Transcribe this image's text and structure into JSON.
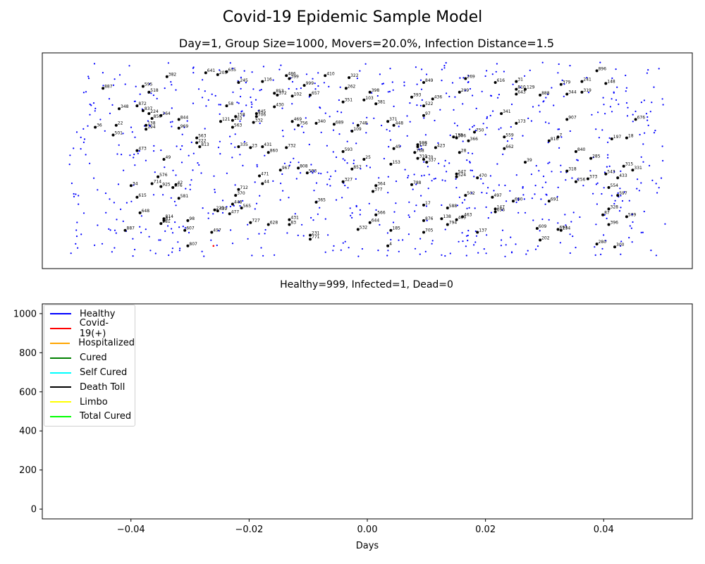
{
  "figure": {
    "title": "Covid-19 Epidemic Sample Model",
    "status_line": "Healthy=999, Infected=1, Dead=0"
  },
  "chart_data": [
    {
      "type": "scatter",
      "title": "Day=1, Group Size=1000, Movers=20.0%, Infection Distance=1.5",
      "axes_visible": false,
      "xlim": [
        0,
        100
      ],
      "ylim": [
        0,
        100
      ],
      "population": 1000,
      "healthy_color": "#0000ff",
      "infected_color": "#ff0000",
      "mover_color": "#000000",
      "infected_point": {
        "x": 24.3,
        "y": 5.5
      },
      "labelled_movers": [
        {
          "label": "641",
          "x": 23.0,
          "y": 94.5
        },
        {
          "label": "205",
          "x": 25.0,
          "y": 93.5
        },
        {
          "label": "655",
          "x": 26.5,
          "y": 95.0
        },
        {
          "label": "382",
          "x": 16.5,
          "y": 92.5
        },
        {
          "label": "486",
          "x": 36.5,
          "y": 93.0
        },
        {
          "label": "399",
          "x": 37.0,
          "y": 91.5
        },
        {
          "label": "410",
          "x": 43.0,
          "y": 93.0
        },
        {
          "label": "322",
          "x": 47.0,
          "y": 92.0
        },
        {
          "label": "269",
          "x": 66.5,
          "y": 91.5
        },
        {
          "label": "896",
          "x": 88.5,
          "y": 95.5
        },
        {
          "label": "887",
          "x": 5.8,
          "y": 86.5
        },
        {
          "label": "595",
          "x": 12.5,
          "y": 87.5
        },
        {
          "label": "518",
          "x": 13.5,
          "y": 84.5
        },
        {
          "label": "116",
          "x": 32.5,
          "y": 90.0
        },
        {
          "label": "245",
          "x": 28.5,
          "y": 89.5
        },
        {
          "label": "999",
          "x": 39.5,
          "y": 88.0
        },
        {
          "label": "853",
          "x": 34.5,
          "y": 84.0
        },
        {
          "label": "372",
          "x": 35.0,
          "y": 83.0
        },
        {
          "label": "102",
          "x": 37.5,
          "y": 82.5
        },
        {
          "label": "657",
          "x": 40.5,
          "y": 83.0
        },
        {
          "label": "262",
          "x": 46.5,
          "y": 86.5
        },
        {
          "label": "398",
          "x": 50.5,
          "y": 84.5
        },
        {
          "label": "849",
          "x": 59.5,
          "y": 89.5
        },
        {
          "label": "616",
          "x": 71.5,
          "y": 89.5
        },
        {
          "label": "31",
          "x": 75.0,
          "y": 90.0
        },
        {
          "label": "810",
          "x": 75.0,
          "y": 86.0
        },
        {
          "label": "129",
          "x": 76.5,
          "y": 86.0
        },
        {
          "label": "643",
          "x": 75.0,
          "y": 83.5
        },
        {
          "label": "888",
          "x": 79.0,
          "y": 83.0
        },
        {
          "label": "379",
          "x": 82.5,
          "y": 88.5
        },
        {
          "label": "241",
          "x": 86.0,
          "y": 90.0
        },
        {
          "label": "148",
          "x": 90.0,
          "y": 89.0
        },
        {
          "label": "344",
          "x": 83.5,
          "y": 83.5
        },
        {
          "label": "319",
          "x": 86.0,
          "y": 84.5
        },
        {
          "label": "209",
          "x": 65.5,
          "y": 84.5
        },
        {
          "label": "393",
          "x": 57.5,
          "y": 82.0
        },
        {
          "label": "436",
          "x": 61.0,
          "y": 81.0
        },
        {
          "label": "103",
          "x": 49.5,
          "y": 80.5
        },
        {
          "label": "351",
          "x": 46.0,
          "y": 79.5
        },
        {
          "label": "381",
          "x": 51.5,
          "y": 78.5
        },
        {
          "label": "348",
          "x": 8.5,
          "y": 76.0
        },
        {
          "label": "872",
          "x": 11.5,
          "y": 77.5
        },
        {
          "label": "837",
          "x": 12.5,
          "y": 75.0
        },
        {
          "label": "224",
          "x": 13.5,
          "y": 73.5
        },
        {
          "label": "264",
          "x": 15.5,
          "y": 72.5
        },
        {
          "label": "850",
          "x": 14.0,
          "y": 71.0
        },
        {
          "label": "844",
          "x": 18.5,
          "y": 70.5
        },
        {
          "label": "58",
          "x": 26.5,
          "y": 77.5
        },
        {
          "label": "430",
          "x": 34.5,
          "y": 77.0
        },
        {
          "label": "845",
          "x": 31.5,
          "y": 73.5
        },
        {
          "label": "706",
          "x": 31.5,
          "y": 72.0
        },
        {
          "label": "158",
          "x": 28.0,
          "y": 72.0
        },
        {
          "label": "121",
          "x": 25.5,
          "y": 69.5
        },
        {
          "label": "103",
          "x": 27.5,
          "y": 70.0
        },
        {
          "label": "332",
          "x": 31.0,
          "y": 69.0
        },
        {
          "label": "563",
          "x": 27.5,
          "y": 66.5
        },
        {
          "label": "469",
          "x": 37.5,
          "y": 69.5
        },
        {
          "label": "756",
          "x": 38.5,
          "y": 67.5
        },
        {
          "label": "340",
          "x": 41.5,
          "y": 68.5
        },
        {
          "label": "689",
          "x": 44.5,
          "y": 68.0
        },
        {
          "label": "748",
          "x": 48.5,
          "y": 67.5
        },
        {
          "label": "109",
          "x": 47.5,
          "y": 64.5
        },
        {
          "label": "371",
          "x": 53.5,
          "y": 69.5
        },
        {
          "label": "448",
          "x": 54.5,
          "y": 67.5
        },
        {
          "label": "522",
          "x": 59.5,
          "y": 77.5
        },
        {
          "label": "97",
          "x": 59.5,
          "y": 72.5
        },
        {
          "label": "341",
          "x": 72.5,
          "y": 73.5
        },
        {
          "label": "173",
          "x": 75.0,
          "y": 68.5
        },
        {
          "label": "907",
          "x": 83.5,
          "y": 70.5
        },
        {
          "label": "676",
          "x": 95.0,
          "y": 70.5
        },
        {
          "label": "36",
          "x": 4.5,
          "y": 66.5
        },
        {
          "label": "22",
          "x": 8.0,
          "y": 67.5
        },
        {
          "label": "138",
          "x": 13.0,
          "y": 67.5
        },
        {
          "label": "194",
          "x": 13.0,
          "y": 65.5
        },
        {
          "label": "969",
          "x": 18.5,
          "y": 66.0
        },
        {
          "label": "501",
          "x": 7.5,
          "y": 62.5
        },
        {
          "label": "563",
          "x": 21.5,
          "y": 61.0
        },
        {
          "label": "222",
          "x": 21.5,
          "y": 58.5
        },
        {
          "label": "813",
          "x": 22.0,
          "y": 56.5
        },
        {
          "label": "473",
          "x": 11.5,
          "y": 54.5
        },
        {
          "label": "335",
          "x": 28.5,
          "y": 56.5
        },
        {
          "label": "23",
          "x": 30.5,
          "y": 56.0
        },
        {
          "label": "431",
          "x": 32.5,
          "y": 56.5
        },
        {
          "label": "732",
          "x": 36.5,
          "y": 56.0
        },
        {
          "label": "860",
          "x": 33.5,
          "y": 53.5
        },
        {
          "label": "593",
          "x": 46.0,
          "y": 54.0
        },
        {
          "label": "25",
          "x": 49.5,
          "y": 50.0
        },
        {
          "label": "45",
          "x": 54.5,
          "y": 55.5
        },
        {
          "label": "768",
          "x": 58.0,
          "y": 53.5
        },
        {
          "label": "598",
          "x": 58.5,
          "y": 57.5
        },
        {
          "label": "152",
          "x": 58.5,
          "y": 56.5
        },
        {
          "label": "423",
          "x": 61.5,
          "y": 56.0
        },
        {
          "label": "310",
          "x": 58.5,
          "y": 50.5
        },
        {
          "label": "470",
          "x": 59.5,
          "y": 50.0
        },
        {
          "label": "337",
          "x": 60.0,
          "y": 48.5
        },
        {
          "label": "153",
          "x": 54.0,
          "y": 47.5
        },
        {
          "label": "28",
          "x": 65.5,
          "y": 53.5
        },
        {
          "label": "138",
          "x": 64.5,
          "y": 61.5
        },
        {
          "label": "506",
          "x": 65.0,
          "y": 61.0
        },
        {
          "label": "750",
          "x": 68.0,
          "y": 64.0
        },
        {
          "label": "366",
          "x": 67.0,
          "y": 59.5
        },
        {
          "label": "559",
          "x": 73.0,
          "y": 61.5
        },
        {
          "label": "662",
          "x": 73.0,
          "y": 55.5
        },
        {
          "label": "7",
          "x": 82.0,
          "y": 61.5
        },
        {
          "label": "816",
          "x": 80.5,
          "y": 59.5
        },
        {
          "label": "197",
          "x": 91.0,
          "y": 60.5
        },
        {
          "label": "18",
          "x": 93.5,
          "y": 61.0
        },
        {
          "label": "840",
          "x": 85.0,
          "y": 54.0
        },
        {
          "label": "285",
          "x": 87.5,
          "y": 50.5
        },
        {
          "label": "39",
          "x": 76.5,
          "y": 48.5
        },
        {
          "label": "315",
          "x": 93.0,
          "y": 46.5
        },
        {
          "label": "331",
          "x": 94.5,
          "y": 44.5
        },
        {
          "label": "318",
          "x": 83.5,
          "y": 44.0
        },
        {
          "label": "543",
          "x": 90.0,
          "y": 42.5
        },
        {
          "label": "433",
          "x": 92.0,
          "y": 40.5
        },
        {
          "label": "373",
          "x": 87.0,
          "y": 40.0
        },
        {
          "label": "256",
          "x": 85.0,
          "y": 38.5
        },
        {
          "label": "554",
          "x": 90.5,
          "y": 35.5
        },
        {
          "label": "597",
          "x": 92.0,
          "y": 31.5
        },
        {
          "label": "49",
          "x": 16.0,
          "y": 50.0
        },
        {
          "label": "576",
          "x": 15.0,
          "y": 41.0
        },
        {
          "label": "714",
          "x": 14.0,
          "y": 37.5
        },
        {
          "label": "925",
          "x": 15.5,
          "y": 36.0
        },
        {
          "label": "42",
          "x": 18.0,
          "y": 37.0
        },
        {
          "label": "876",
          "x": 17.5,
          "y": 35.5
        },
        {
          "label": "34",
          "x": 10.5,
          "y": 36.5
        },
        {
          "label": "615",
          "x": 11.5,
          "y": 30.5
        },
        {
          "label": "581",
          "x": 18.5,
          "y": 30.0
        },
        {
          "label": "967",
          "x": 35.5,
          "y": 44.5
        },
        {
          "label": "808",
          "x": 38.5,
          "y": 45.5
        },
        {
          "label": "583",
          "x": 40.0,
          "y": 43.0
        },
        {
          "label": "857",
          "x": 47.5,
          "y": 45.0
        },
        {
          "label": "471",
          "x": 32.0,
          "y": 41.5
        },
        {
          "label": "44",
          "x": 32.5,
          "y": 37.5
        },
        {
          "label": "327",
          "x": 46.0,
          "y": 38.5
        },
        {
          "label": "364",
          "x": 51.5,
          "y": 36.5
        },
        {
          "label": "377",
          "x": 51.0,
          "y": 33.5
        },
        {
          "label": "788",
          "x": 57.5,
          "y": 37.0
        },
        {
          "label": "547",
          "x": 65.0,
          "y": 42.5
        },
        {
          "label": "524",
          "x": 65.0,
          "y": 41.0
        },
        {
          "label": "470",
          "x": 68.5,
          "y": 40.5
        },
        {
          "label": "502",
          "x": 66.5,
          "y": 31.5
        },
        {
          "label": "497",
          "x": 71.0,
          "y": 30.5
        },
        {
          "label": "690",
          "x": 74.5,
          "y": 28.5
        },
        {
          "label": "691",
          "x": 80.5,
          "y": 28.5
        },
        {
          "label": "328",
          "x": 90.5,
          "y": 24.5
        },
        {
          "label": "87",
          "x": 89.5,
          "y": 21.5
        },
        {
          "label": "712",
          "x": 28.5,
          "y": 34.5
        },
        {
          "label": "370",
          "x": 28.0,
          "y": 31.5
        },
        {
          "label": "448",
          "x": 27.5,
          "y": 27.0
        },
        {
          "label": "565",
          "x": 29.0,
          "y": 25.0
        },
        {
          "label": "365",
          "x": 41.5,
          "y": 28.0
        },
        {
          "label": "17",
          "x": 59.5,
          "y": 26.5
        },
        {
          "label": "588",
          "x": 63.5,
          "y": 25.0
        },
        {
          "label": "147",
          "x": 71.5,
          "y": 24.5
        },
        {
          "label": "696",
          "x": 71.5,
          "y": 23.0
        },
        {
          "label": "229",
          "x": 24.5,
          "y": 24.0
        },
        {
          "label": "439",
          "x": 25.0,
          "y": 23.5
        },
        {
          "label": "477",
          "x": 27.0,
          "y": 22.0
        },
        {
          "label": "648",
          "x": 12.0,
          "y": 22.5
        },
        {
          "label": "814",
          "x": 16.0,
          "y": 19.5
        },
        {
          "label": "81",
          "x": 16.0,
          "y": 18.5
        },
        {
          "label": "281",
          "x": 15.5,
          "y": 17.0
        },
        {
          "label": "98",
          "x": 20.0,
          "y": 18.5
        },
        {
          "label": "727",
          "x": 30.5,
          "y": 17.5
        },
        {
          "label": "628",
          "x": 33.5,
          "y": 16.5
        },
        {
          "label": "431",
          "x": 37.0,
          "y": 19.0
        },
        {
          "label": "83",
          "x": 37.0,
          "y": 16.5
        },
        {
          "label": "566",
          "x": 51.5,
          "y": 21.5
        },
        {
          "label": "644",
          "x": 50.5,
          "y": 17.5
        },
        {
          "label": "876",
          "x": 59.5,
          "y": 18.5
        },
        {
          "label": "138",
          "x": 62.5,
          "y": 19.5
        },
        {
          "label": "463",
          "x": 66.0,
          "y": 20.5
        },
        {
          "label": "409",
          "x": 65.0,
          "y": 19.0
        },
        {
          "label": "794",
          "x": 63.5,
          "y": 16.5
        },
        {
          "label": "509",
          "x": 93.5,
          "y": 20.5
        },
        {
          "label": "396",
          "x": 90.5,
          "y": 16.5
        },
        {
          "label": "887",
          "x": 9.5,
          "y": 13.5
        },
        {
          "label": "607",
          "x": 19.5,
          "y": 13.5
        },
        {
          "label": "497",
          "x": 24.0,
          "y": 12.5
        },
        {
          "label": "532",
          "x": 48.5,
          "y": 14.0
        },
        {
          "label": "185",
          "x": 54.0,
          "y": 13.5
        },
        {
          "label": "705",
          "x": 59.5,
          "y": 12.5
        },
        {
          "label": "137",
          "x": 68.5,
          "y": 12.5
        },
        {
          "label": "609",
          "x": 78.5,
          "y": 14.5
        },
        {
          "label": "694",
          "x": 82.0,
          "y": 14.0
        },
        {
          "label": "134",
          "x": 82.5,
          "y": 13.5
        },
        {
          "label": "231",
          "x": 40.5,
          "y": 11.0
        },
        {
          "label": "771",
          "x": 40.5,
          "y": 9.0
        },
        {
          "label": "202",
          "x": 79.0,
          "y": 8.5
        },
        {
          "label": "807",
          "x": 20.0,
          "y": 5.5
        },
        {
          "label": "4",
          "x": 53.5,
          "y": 5.5
        },
        {
          "label": "280",
          "x": 88.5,
          "y": 6.5
        },
        {
          "label": "300",
          "x": 91.5,
          "y": 5.0
        }
      ]
    },
    {
      "type": "line",
      "title": "",
      "xlabel": "Days",
      "ylabel": "",
      "xlim": [
        -0.055,
        0.055
      ],
      "ylim": [
        -50,
        1050
      ],
      "x_ticks": [
        -0.04,
        -0.02,
        0.0,
        0.02,
        0.04
      ],
      "x_tick_labels": [
        "−0.04",
        "−0.02",
        "0.00",
        "0.02",
        "0.04"
      ],
      "y_ticks": [
        0,
        200,
        400,
        600,
        800,
        1000
      ],
      "y_tick_labels": [
        "0",
        "200",
        "400",
        "600",
        "800",
        "1000"
      ],
      "legend_position": "upper-left",
      "x": [
        0
      ],
      "series": [
        {
          "name": "Healthy",
          "color": "#0000ff",
          "values": [
            999
          ]
        },
        {
          "name": "Covid-19(+)",
          "color": "#ff0000",
          "values": [
            1
          ]
        },
        {
          "name": "Hospitalized",
          "color": "#ffa500",
          "values": [
            0
          ]
        },
        {
          "name": "Cured",
          "color": "#008000",
          "values": [
            0
          ]
        },
        {
          "name": "Self Cured",
          "color": "#00ffff",
          "values": [
            0
          ]
        },
        {
          "name": "Death Toll",
          "color": "#000000",
          "values": [
            0
          ]
        },
        {
          "name": "Limbo",
          "color": "#ffff00",
          "values": [
            0
          ]
        },
        {
          "name": "Total Cured",
          "color": "#00ff00",
          "values": [
            0
          ]
        }
      ]
    }
  ]
}
